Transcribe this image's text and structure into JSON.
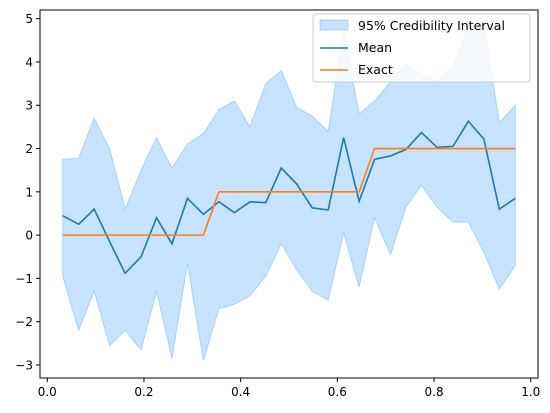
{
  "chart_data": {
    "type": "line",
    "title": "",
    "xlabel": "",
    "ylabel": "",
    "xlim": [
      -0.015,
      1.015
    ],
    "ylim": [
      -3.3,
      5.2
    ],
    "xticks": [
      0.0,
      0.2,
      0.4,
      0.6,
      0.8,
      1.0
    ],
    "xtick_labels": [
      "0.0",
      "0.2",
      "0.4",
      "0.6",
      "0.8",
      "1.0"
    ],
    "yticks": [
      -3,
      -2,
      -1,
      0,
      1,
      2,
      3,
      4,
      5
    ],
    "ytick_labels": [
      "−3",
      "−2",
      "−1",
      "0",
      "1",
      "2",
      "3",
      "4",
      "5"
    ],
    "grid": false,
    "legend": "top-right",
    "x": [
      0.032,
      0.065,
      0.097,
      0.129,
      0.161,
      0.194,
      0.226,
      0.258,
      0.29,
      0.323,
      0.355,
      0.387,
      0.419,
      0.452,
      0.484,
      0.516,
      0.548,
      0.581,
      0.613,
      0.645,
      0.677,
      0.71,
      0.742,
      0.774,
      0.806,
      0.839,
      0.871,
      0.903,
      0.935,
      0.968
    ],
    "band": {
      "name": "95% Credibility Interval",
      "color": "#1f8fff",
      "lower": [
        -0.95,
        -2.2,
        -1.3,
        -2.55,
        -2.2,
        -2.65,
        -1.3,
        -2.85,
        -0.65,
        -2.9,
        -1.7,
        -1.6,
        -1.4,
        -0.95,
        -0.2,
        -0.8,
        -1.3,
        -1.5,
        0.05,
        -1.2,
        0.4,
        -0.45,
        0.65,
        1.15,
        0.65,
        0.3,
        0.3,
        -0.4,
        -1.25,
        -0.7
      ],
      "upper": [
        1.75,
        1.78,
        2.7,
        2.0,
        0.6,
        1.5,
        2.25,
        1.55,
        2.1,
        2.35,
        2.9,
        3.1,
        2.5,
        3.5,
        3.8,
        2.95,
        2.75,
        2.4,
        4.7,
        2.8,
        3.1,
        3.55,
        3.95,
        3.7,
        3.55,
        3.9,
        4.8,
        4.85,
        2.6,
        3.0
      ]
    },
    "series": [
      {
        "name": "Mean",
        "color": "#1f77b4",
        "values": [
          0.45,
          0.25,
          0.6,
          -0.15,
          -0.88,
          -0.5,
          0.4,
          -0.2,
          0.85,
          0.48,
          0.77,
          0.52,
          0.77,
          0.75,
          1.55,
          1.18,
          0.63,
          0.58,
          2.25,
          0.78,
          1.75,
          1.83,
          1.98,
          2.37,
          2.03,
          2.05,
          2.63,
          2.22,
          0.6,
          0.85
        ]
      },
      {
        "name": "Exact",
        "color": "#ff7f0e",
        "step_x": [
          0.032,
          0.323,
          0.355,
          0.645,
          0.677,
          0.968
        ],
        "step_y": [
          0,
          0,
          1,
          1,
          2,
          2
        ]
      }
    ]
  }
}
